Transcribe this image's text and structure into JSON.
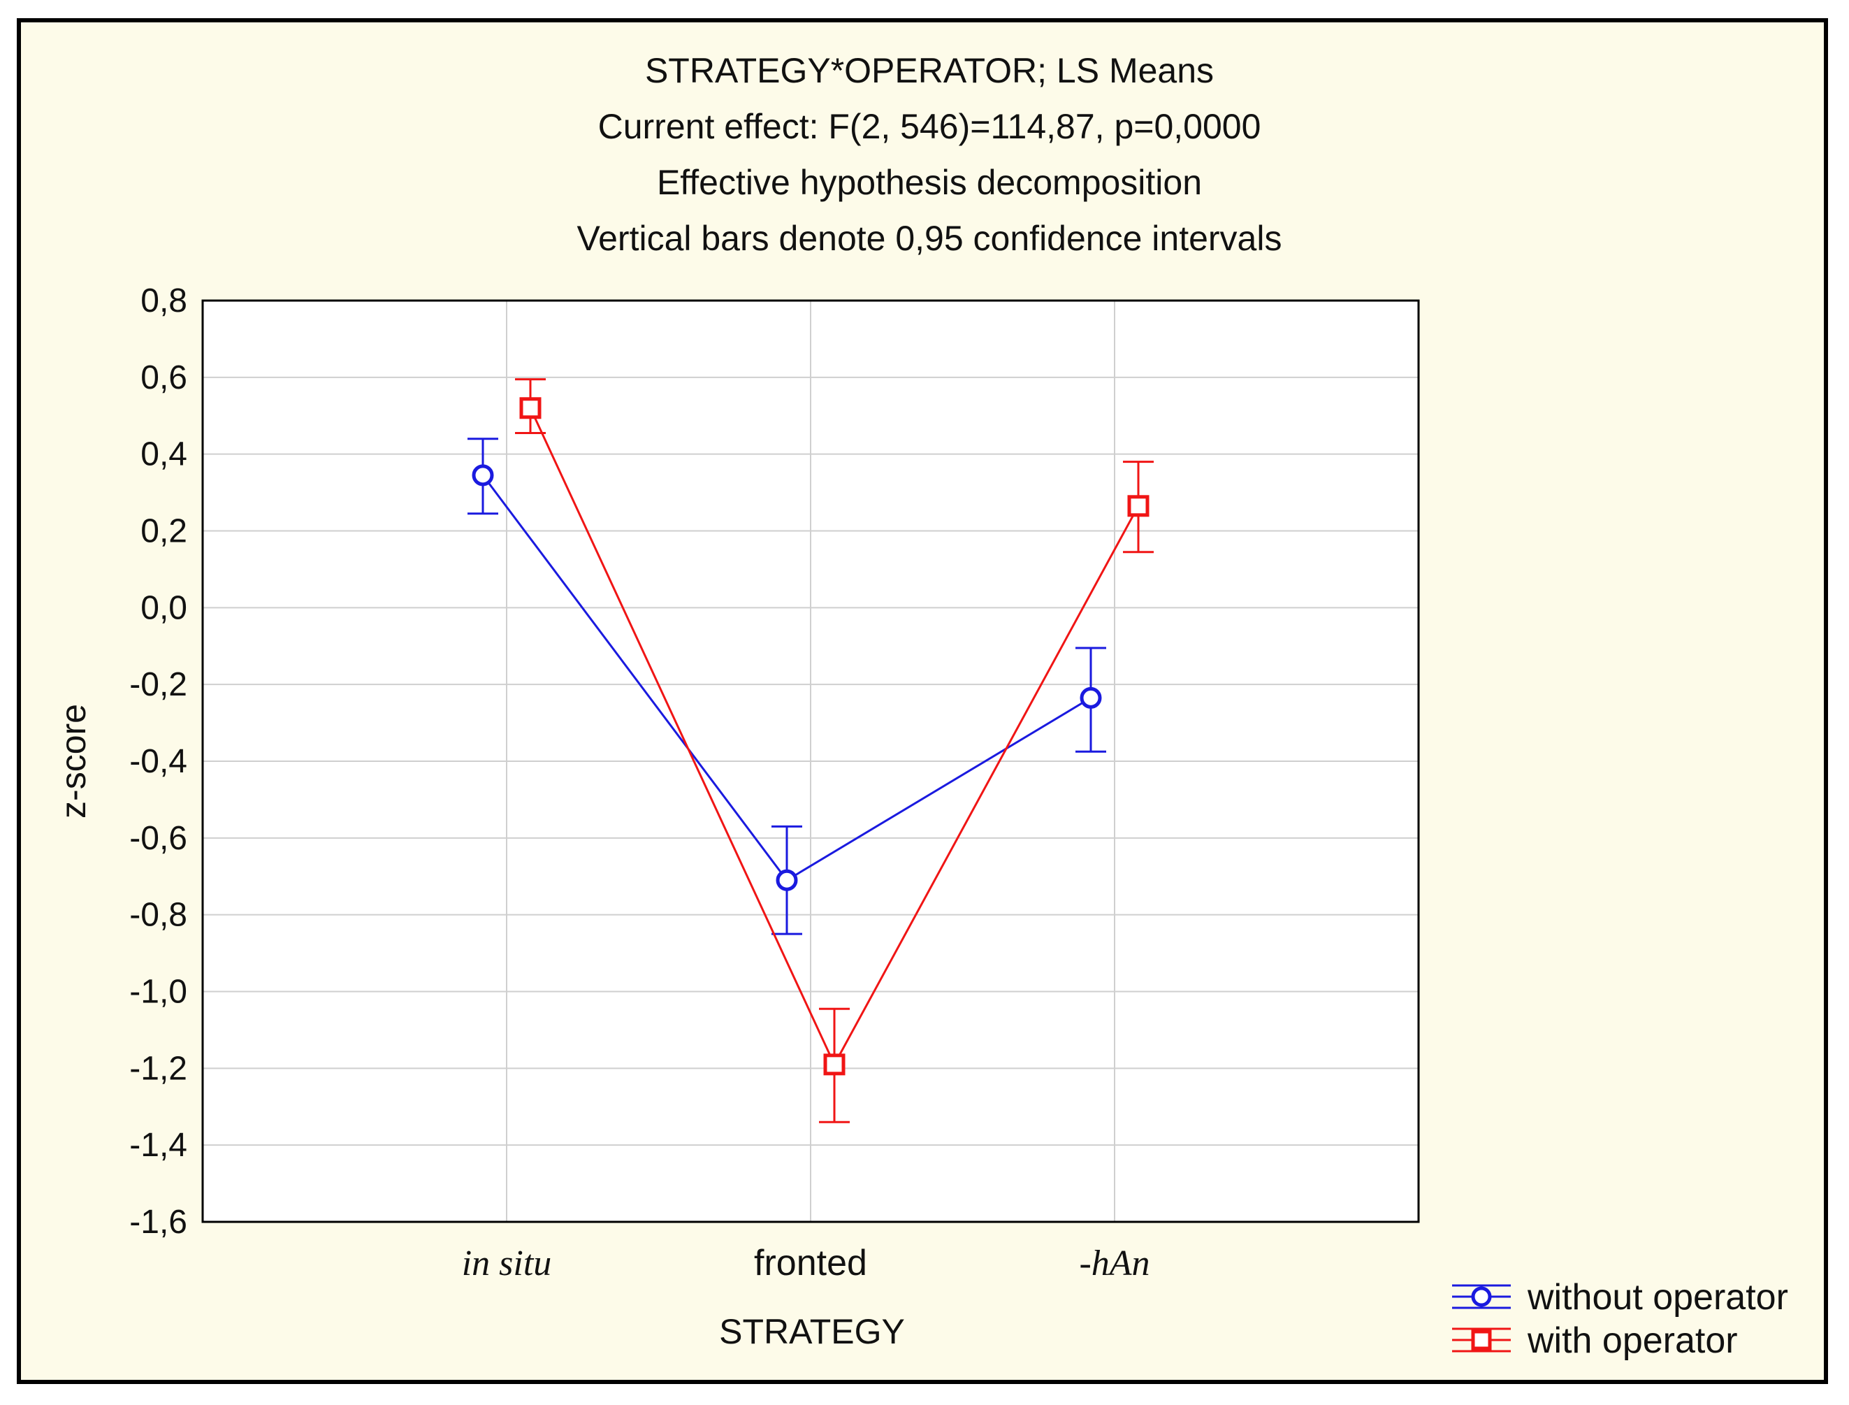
{
  "chart_data": {
    "type": "line",
    "title_lines": [
      "STRATEGY*OPERATOR; LS Means",
      "Current effect: F(2, 546)=114,87, p=0,0000",
      "Effective hypothesis decomposition",
      "Vertical bars denote 0,95 confidence intervals"
    ],
    "xlabel": "STRATEGY",
    "ylabel": "z-score",
    "categories": [
      "in situ",
      "fronted",
      "-hAn"
    ],
    "category_styles": [
      "italic",
      "normal",
      "italic"
    ],
    "ylim": [
      -1.6,
      0.8
    ],
    "yticks": [
      0.8,
      0.6,
      0.4,
      0.2,
      0.0,
      -0.2,
      -0.4,
      -0.6,
      -0.8,
      -1.0,
      -1.2,
      -1.4,
      -1.6
    ],
    "ytick_labels": [
      "0,8",
      "0,6",
      "0,4",
      "0,2",
      "0,0",
      "-0,2",
      "-0,4",
      "-0,6",
      "-0,8",
      "-1,0",
      "-1,2",
      "-1,4",
      "-1,6"
    ],
    "grid": true,
    "legend_position": "bottom-right",
    "series": [
      {
        "name": "without operator",
        "color": "#1a1adf",
        "marker": "circle",
        "values": [
          0.345,
          -0.71,
          -0.235
        ],
        "ci_low": [
          0.245,
          -0.85,
          -0.375
        ],
        "ci_high": [
          0.44,
          -0.57,
          -0.105
        ]
      },
      {
        "name": "with operator",
        "color": "#f01515",
        "marker": "square",
        "values": [
          0.52,
          -1.19,
          0.265
        ],
        "ci_low": [
          0.455,
          -1.34,
          0.145
        ],
        "ci_high": [
          0.595,
          -1.045,
          0.38
        ]
      }
    ]
  }
}
